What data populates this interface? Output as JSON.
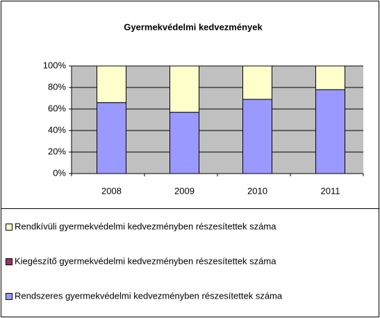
{
  "chart_data": {
    "type": "stacked_bar_100",
    "title": "Gyermekvédelmi kedvezmények",
    "categories": [
      "2008",
      "2009",
      "2010",
      "2011"
    ],
    "series": [
      {
        "name": "Rendszeres gyermekvédelmi kedvezményben részesítettek száma",
        "color": "#9999ff",
        "values": [
          66,
          57,
          69,
          78
        ]
      },
      {
        "name": "Kiegészítő gyermekvédelmi kedvezményben részesítettek száma",
        "color": "#993366",
        "values": [
          0,
          0,
          0,
          0
        ]
      },
      {
        "name": "Rendkívüli gyermekvédelmi kedvezményben részesítettek száma",
        "color": "#ffffcc",
        "values": [
          34,
          43,
          31,
          22
        ]
      }
    ],
    "ylim": [
      0,
      100
    ],
    "yticks": [
      {
        "value": 0,
        "label": "0%"
      },
      {
        "value": 20,
        "label": "20%"
      },
      {
        "value": 40,
        "label": "40%"
      },
      {
        "value": 60,
        "label": "60%"
      },
      {
        "value": 80,
        "label": "80%"
      },
      {
        "value": 100,
        "label": "100%"
      }
    ],
    "grid": true
  }
}
